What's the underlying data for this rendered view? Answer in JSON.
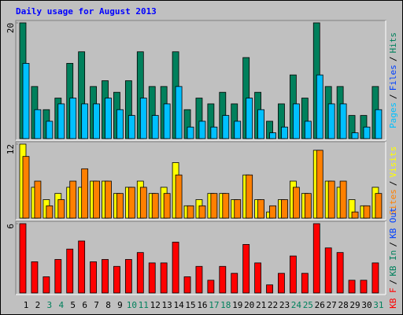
{
  "chart_data": {
    "type": "bar",
    "title": "Daily usage for August 2013",
    "categories": [
      "1",
      "2",
      "3",
      "4",
      "5",
      "6",
      "7",
      "8",
      "9",
      "10",
      "11",
      "12",
      "13",
      "14",
      "15",
      "16",
      "17",
      "18",
      "19",
      "20",
      "21",
      "22",
      "23",
      "24",
      "25",
      "26",
      "27",
      "28",
      "29",
      "30",
      "31"
    ],
    "weekends": [
      "3",
      "4",
      "10",
      "11",
      "17",
      "18",
      "24",
      "25",
      "31"
    ],
    "weekday_color": "#000000",
    "weekend_color": "#00805c",
    "panels": [
      {
        "ylim": [
          0,
          20
        ],
        "yticks": [
          20
        ],
        "labels": [
          {
            "text": "Pages",
            "color": "#00c0ff"
          },
          {
            "text": "/",
            "color": "#000000"
          },
          {
            "text": "Files",
            "color": "#0040ff"
          },
          {
            "text": "/",
            "color": "#000000"
          },
          {
            "text": "Hits",
            "color": "#00805c"
          }
        ],
        "series": [
          {
            "color": "#00805c",
            "values": [
              20,
              9,
              5,
              7,
              13,
              15,
              9,
              10,
              8,
              10,
              15,
              9,
              9,
              15,
              5,
              7,
              6,
              8,
              6,
              14,
              8,
              3,
              6,
              11,
              7,
              20,
              9,
              9,
              4,
              4,
              9
            ]
          },
          {
            "color": "#00c0ff",
            "values": [
              13,
              5,
              3,
              6,
              7,
              6,
              6,
              7,
              5,
              4,
              7,
              4,
              6,
              9,
              2,
              3,
              2,
              4,
              3,
              7,
              5,
              1,
              2,
              6,
              3,
              11,
              6,
              6,
              1,
              2,
              5
            ]
          }
        ]
      },
      {
        "ylim": [
          0,
          12
        ],
        "yticks": [
          12
        ],
        "labels": [
          {
            "text": "Sites",
            "color": "#ff8000"
          },
          {
            "text": "/",
            "color": "#000000"
          },
          {
            "text": "Visits",
            "color": "#ffff00"
          }
        ],
        "series": [
          {
            "color": "#ffff00",
            "values": [
              12,
              5,
              3,
              4,
              5,
              5,
              6,
              6,
              4,
              5,
              6,
              4,
              5,
              9,
              2,
              3,
              4,
              4,
              3,
              7,
              3,
              1,
              3,
              6,
              4,
              11,
              6,
              5,
              3,
              2,
              5
            ]
          },
          {
            "color": "#ff8000",
            "values": [
              10,
              6,
              2,
              3,
              6,
              8,
              6,
              6,
              4,
              5,
              5,
              4,
              4,
              7,
              2,
              2,
              4,
              4,
              3,
              7,
              3,
              2,
              3,
              5,
              4,
              11,
              6,
              6,
              1,
              2,
              4
            ]
          }
        ]
      },
      {
        "ylim": [
          0,
          6
        ],
        "yticks": [
          6
        ],
        "labels": [
          {
            "text": "KB F",
            "color": "#ff0000"
          },
          {
            "text": "/",
            "color": "#000000"
          },
          {
            "text": "KB In",
            "color": "#00805c"
          },
          {
            "text": "/",
            "color": "#000000"
          },
          {
            "text": "KB Out",
            "color": "#0040ff"
          }
        ],
        "series": [
          {
            "color": "#ff0000",
            "values": [
              6,
              2.7,
              1.4,
              2.9,
              3.8,
              4.5,
              2.7,
              2.9,
              2.3,
              2.9,
              3.5,
              2.6,
              2.6,
              4.4,
              1.4,
              2.3,
              1.1,
              2.3,
              1.7,
              4.2,
              2.6,
              0.7,
              1.7,
              3.2,
              1.7,
              6,
              3.9,
              3.5,
              1.1,
              1.1,
              2.6
            ]
          }
        ]
      }
    ]
  }
}
